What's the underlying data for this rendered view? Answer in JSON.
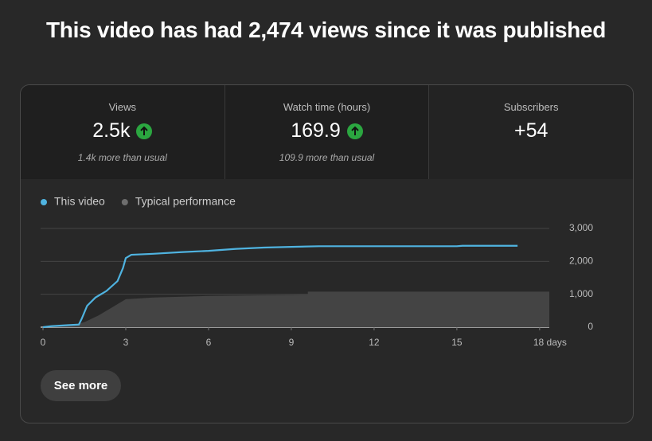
{
  "header": {
    "title": "This video has had 2,474 views since it was published"
  },
  "metrics": [
    {
      "label": "Views",
      "value": "2.5k",
      "note": "1.4k more than usual"
    },
    {
      "label": "Watch time (hours)",
      "value": "169.9",
      "note": "109.9 more than usual"
    },
    {
      "label": "Subscribers",
      "value": "+54"
    }
  ],
  "chart_data": {
    "type": "line",
    "series": [
      {
        "name": "This video",
        "color": "#4fb3e0",
        "x": [
          0,
          0.3,
          0.9,
          1.3,
          1.4,
          1.6,
          1.9,
          2.3,
          2.7,
          2.9,
          3.0,
          3.2,
          4,
          5,
          6,
          7,
          8,
          9,
          10,
          12,
          15,
          15.2,
          17.2
        ],
        "values": [
          0,
          30,
          60,
          80,
          250,
          650,
          900,
          1100,
          1400,
          1800,
          2100,
          2200,
          2230,
          2280,
          2320,
          2380,
          2420,
          2440,
          2460,
          2460,
          2460,
          2474,
          2474
        ]
      },
      {
        "name": "Typical performance",
        "color": "#444444",
        "x": [
          0,
          1,
          1.5,
          2,
          2.5,
          3,
          4,
          6,
          9,
          9.6,
          9.6,
          18.35
        ],
        "values": [
          0,
          50,
          150,
          350,
          600,
          850,
          900,
          950,
          980,
          990,
          1080,
          1080
        ]
      }
    ],
    "xlim": [
      0,
      18.35
    ],
    "xticks": [
      0,
      3,
      6,
      9,
      12,
      15,
      {
        "value": 18,
        "label": "18 days"
      }
    ],
    "ylim": [
      0,
      3000
    ],
    "yticks": [
      0,
      {
        "value": 1000,
        "label": "1,000"
      },
      {
        "value": 2000,
        "label": "2,000"
      },
      {
        "value": 3000,
        "label": "3,000"
      }
    ],
    "grid": true
  },
  "button": {
    "label": "See more"
  }
}
